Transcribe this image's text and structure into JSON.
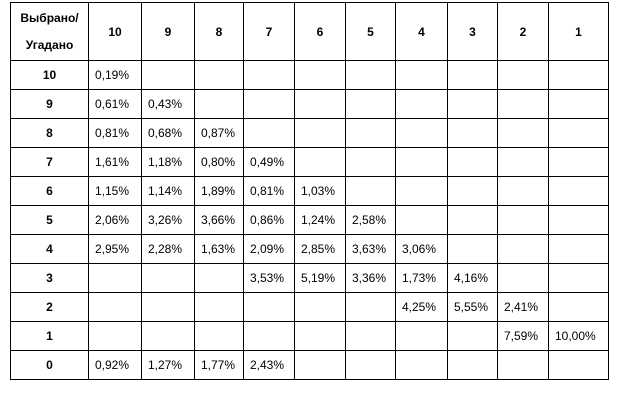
{
  "table": {
    "corner": [
      "Выбрано/",
      "Угадано"
    ],
    "columns": [
      "10",
      "9",
      "8",
      "7",
      "6",
      "5",
      "4",
      "3",
      "2",
      "1"
    ],
    "rows": [
      {
        "label": "10",
        "cells": [
          "0,19%",
          null,
          null,
          null,
          null,
          null,
          null,
          null,
          null,
          null
        ]
      },
      {
        "label": "9",
        "cells": [
          "0,61%",
          "0,43%",
          null,
          null,
          null,
          null,
          null,
          null,
          null,
          null
        ]
      },
      {
        "label": "8",
        "cells": [
          "0,81%",
          "0,68%",
          "0,87%",
          null,
          null,
          null,
          null,
          null,
          null,
          null
        ]
      },
      {
        "label": "7",
        "cells": [
          "1,61%",
          "1,18%",
          "0,80%",
          "0,49%",
          null,
          null,
          null,
          null,
          null,
          null
        ]
      },
      {
        "label": "6",
        "cells": [
          "1,15%",
          "1,14%",
          "1,89%",
          "0,81%",
          "1,03%",
          null,
          null,
          null,
          null,
          null
        ]
      },
      {
        "label": "5",
        "cells": [
          "2,06%",
          "3,26%",
          "3,66%",
          "0,86%",
          "1,24%",
          "2,58%",
          null,
          null,
          null,
          null
        ]
      },
      {
        "label": "4",
        "cells": [
          "2,95%",
          "2,28%",
          "1,63%",
          "2,09%",
          "2,85%",
          "3,63%",
          "3,06%",
          null,
          null,
          null
        ]
      },
      {
        "label": "3",
        "cells": [
          null,
          null,
          null,
          "3,53%",
          "5,19%",
          "3,36%",
          "1,73%",
          "4,16%",
          null,
          null
        ]
      },
      {
        "label": "2",
        "cells": [
          null,
          null,
          null,
          null,
          null,
          null,
          "4,25%",
          "5,55%",
          "2,41%",
          null
        ]
      },
      {
        "label": "1",
        "cells": [
          null,
          null,
          null,
          null,
          null,
          null,
          null,
          null,
          "7,59%",
          "10,00%"
        ]
      },
      {
        "label": "0",
        "cells": [
          "0,92%",
          "1,27%",
          "1,77%",
          "2,43%",
          null,
          null,
          null,
          null,
          null,
          null
        ]
      }
    ]
  }
}
